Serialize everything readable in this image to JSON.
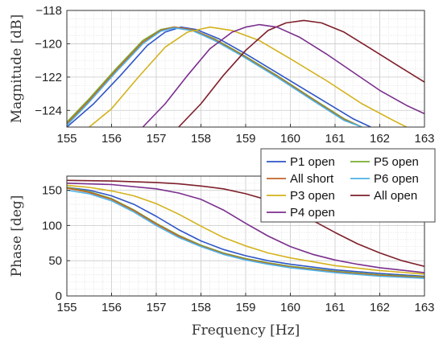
{
  "chart_data": [
    {
      "type": "line",
      "xlabel": "",
      "ylabel": "Magnitude [dB]",
      "xlim": [
        155,
        163
      ],
      "ylim": [
        -125,
        -118
      ],
      "xticks": [
        155,
        156,
        157,
        158,
        159,
        160,
        161,
        162,
        163
      ],
      "xtick_labels": [
        "155",
        "156",
        "157",
        "158",
        "159",
        "160",
        "161",
        "162",
        "163"
      ],
      "yticks": [
        -124,
        -122,
        -120,
        -118
      ],
      "ytick_labels": [
        "−124",
        "−122",
        "−120",
        "−118"
      ],
      "grid": true,
      "series": [
        {
          "name": "P1 open",
          "color": "#2e55c8",
          "x": [
            155.0,
            155.6,
            156.2,
            156.8,
            157.2,
            157.55,
            157.9,
            158.4,
            159.0,
            159.8,
            160.6,
            161.4,
            161.8
          ],
          "y": [
            -125.0,
            -123.6,
            -121.9,
            -120.1,
            -119.3,
            -119.0,
            -119.15,
            -119.7,
            -120.6,
            -121.9,
            -123.2,
            -124.5,
            -125.0
          ]
        },
        {
          "name": "P5 open",
          "color": "#77ac30",
          "x": [
            155.0,
            155.5,
            156.1,
            156.7,
            157.1,
            157.4,
            157.8,
            158.3,
            158.9,
            159.7,
            160.5,
            161.2,
            161.6
          ],
          "y": [
            -124.7,
            -123.3,
            -121.5,
            -119.8,
            -119.15,
            -119.0,
            -119.15,
            -119.7,
            -120.6,
            -121.9,
            -123.3,
            -124.5,
            -125.0
          ]
        },
        {
          "name": "All short",
          "color": "#c0642a",
          "x": [
            155.0,
            155.5,
            156.1,
            156.7,
            157.1,
            157.4,
            157.8,
            158.3,
            158.9,
            159.7,
            160.5,
            161.2,
            161.6
          ],
          "y": [
            -124.8,
            -123.4,
            -121.6,
            -119.9,
            -119.2,
            -119.0,
            -119.15,
            -119.75,
            -120.65,
            -121.95,
            -123.35,
            -124.55,
            -125.0
          ]
        },
        {
          "name": "P6 open",
          "color": "#4db3e6",
          "x": [
            155.0,
            155.5,
            156.1,
            156.7,
            157.1,
            157.4,
            157.8,
            158.3,
            158.9,
            159.7,
            160.5,
            161.2,
            161.6
          ],
          "y": [
            -124.9,
            -123.5,
            -121.7,
            -120.0,
            -119.25,
            -119.05,
            -119.2,
            -119.8,
            -120.7,
            -122.0,
            -123.4,
            -124.6,
            -125.0
          ]
        },
        {
          "name": "P3 open",
          "color": "#d4b21c",
          "x": [
            155.5,
            156.0,
            156.6,
            157.2,
            157.7,
            158.2,
            158.7,
            159.3,
            160.0,
            160.8,
            161.6,
            162.3,
            162.6
          ],
          "y": [
            -125.0,
            -123.9,
            -122.0,
            -120.2,
            -119.3,
            -119.0,
            -119.2,
            -119.8,
            -120.9,
            -122.2,
            -123.6,
            -124.6,
            -125.0
          ]
        },
        {
          "name": "All open",
          "color": "#7e1f2a",
          "x": [
            157.5,
            158.0,
            158.5,
            159.0,
            159.5,
            159.9,
            160.3,
            160.7,
            161.2,
            161.8,
            162.4,
            163.0
          ],
          "y": [
            -125.0,
            -123.6,
            -121.9,
            -120.4,
            -119.2,
            -118.75,
            -118.6,
            -118.75,
            -119.3,
            -120.3,
            -121.3,
            -122.3
          ]
        },
        {
          "name": "P4 open",
          "color": "#7b2f8e",
          "x": [
            156.7,
            157.2,
            157.7,
            158.2,
            158.7,
            159.0,
            159.3,
            159.7,
            160.2,
            160.8,
            161.4,
            162.0,
            162.6,
            163.0
          ],
          "y": [
            -125.0,
            -123.6,
            -121.9,
            -120.3,
            -119.3,
            -119.0,
            -118.85,
            -119.0,
            -119.6,
            -120.6,
            -121.7,
            -122.8,
            -123.7,
            -124.2
          ]
        }
      ]
    },
    {
      "type": "line",
      "xlabel": "Frequency [Hz]",
      "ylabel": "Phase [deg]",
      "xlim": [
        155,
        163
      ],
      "ylim": [
        0,
        170
      ],
      "xticks": [
        155,
        156,
        157,
        158,
        159,
        160,
        161,
        162,
        163
      ],
      "xtick_labels": [
        "155",
        "156",
        "157",
        "158",
        "159",
        "160",
        "161",
        "162",
        "163"
      ],
      "yticks": [
        0,
        50,
        100,
        150
      ],
      "ytick_labels": [
        "0",
        "50",
        "100",
        "150"
      ],
      "grid": true,
      "legend": "top-right",
      "series": [
        {
          "name": "P1 open",
          "color": "#2e55c8",
          "x": [
            155.0,
            155.5,
            156.0,
            156.5,
            157.0,
            157.5,
            158.0,
            158.5,
            159.0,
            159.5,
            160.0,
            161.0,
            162.0,
            163.0
          ],
          "y": [
            154,
            150,
            142,
            130,
            113,
            94,
            78,
            66,
            57,
            50,
            45,
            37,
            32,
            28
          ]
        },
        {
          "name": "P5 open",
          "color": "#77ac30",
          "x": [
            155.0,
            155.5,
            156.0,
            156.5,
            157.0,
            157.5,
            158.0,
            158.5,
            159.0,
            159.5,
            160.0,
            161.0,
            162.0,
            163.0
          ],
          "y": [
            154,
            148,
            138,
            122,
            103,
            86,
            72,
            61,
            53,
            47,
            42,
            35,
            30,
            27
          ]
        },
        {
          "name": "All short",
          "color": "#c0642a",
          "x": [
            155.0,
            155.5,
            156.0,
            156.5,
            157.0,
            157.5,
            158.0,
            158.5,
            159.0,
            159.5,
            160.0,
            161.0,
            162.0,
            163.0
          ],
          "y": [
            153,
            147,
            137,
            121,
            102,
            85,
            71,
            60,
            52,
            46,
            41,
            34,
            29,
            26
          ]
        },
        {
          "name": "P6 open",
          "color": "#4db3e6",
          "x": [
            155.0,
            155.5,
            156.0,
            156.5,
            157.0,
            157.5,
            158.0,
            158.5,
            159.0,
            159.5,
            160.0,
            161.0,
            162.0,
            163.0
          ],
          "y": [
            150,
            145,
            135,
            119,
            100,
            83,
            70,
            59,
            51,
            45,
            40,
            33,
            28,
            25
          ]
        },
        {
          "name": "P3 open",
          "color": "#d4b21c",
          "x": [
            155.0,
            155.5,
            156.0,
            156.5,
            157.0,
            157.5,
            158.0,
            158.5,
            159.0,
            159.5,
            160.0,
            161.0,
            162.0,
            163.0
          ],
          "y": [
            157,
            154,
            149,
            142,
            131,
            116,
            99,
            83,
            71,
            61,
            54,
            43,
            36,
            31
          ]
        },
        {
          "name": "All open",
          "color": "#7e1f2a",
          "x": [
            155.0,
            156.0,
            157.0,
            157.5,
            158.0,
            158.5,
            159.0,
            159.5,
            160.0,
            160.5,
            161.0,
            161.5,
            162.0,
            162.5,
            163.0
          ],
          "y": [
            164,
            163,
            161,
            159,
            156,
            152,
            145,
            136,
            123,
            107,
            90,
            74,
            61,
            50,
            42
          ]
        },
        {
          "name": "P4 open",
          "color": "#7b2f8e",
          "x": [
            155.0,
            156.0,
            157.0,
            157.5,
            158.0,
            158.5,
            159.0,
            159.5,
            160.0,
            160.5,
            161.0,
            161.5,
            162.0,
            163.0
          ],
          "y": [
            160,
            158,
            152,
            146,
            137,
            122,
            103,
            85,
            70,
            59,
            51,
            45,
            40,
            33
          ]
        }
      ]
    }
  ],
  "legend": {
    "entries": [
      {
        "label": "P1 open",
        "color": "#2e55c8"
      },
      {
        "label": "P5 open",
        "color": "#77ac30"
      },
      {
        "label": "All short",
        "color": "#c0642a"
      },
      {
        "label": "P6 open",
        "color": "#4db3e6"
      },
      {
        "label": "P3 open",
        "color": "#d4b21c"
      },
      {
        "label": "All open",
        "color": "#7e1f2a"
      },
      {
        "label": "P4 open",
        "color": "#7b2f8e"
      }
    ]
  }
}
